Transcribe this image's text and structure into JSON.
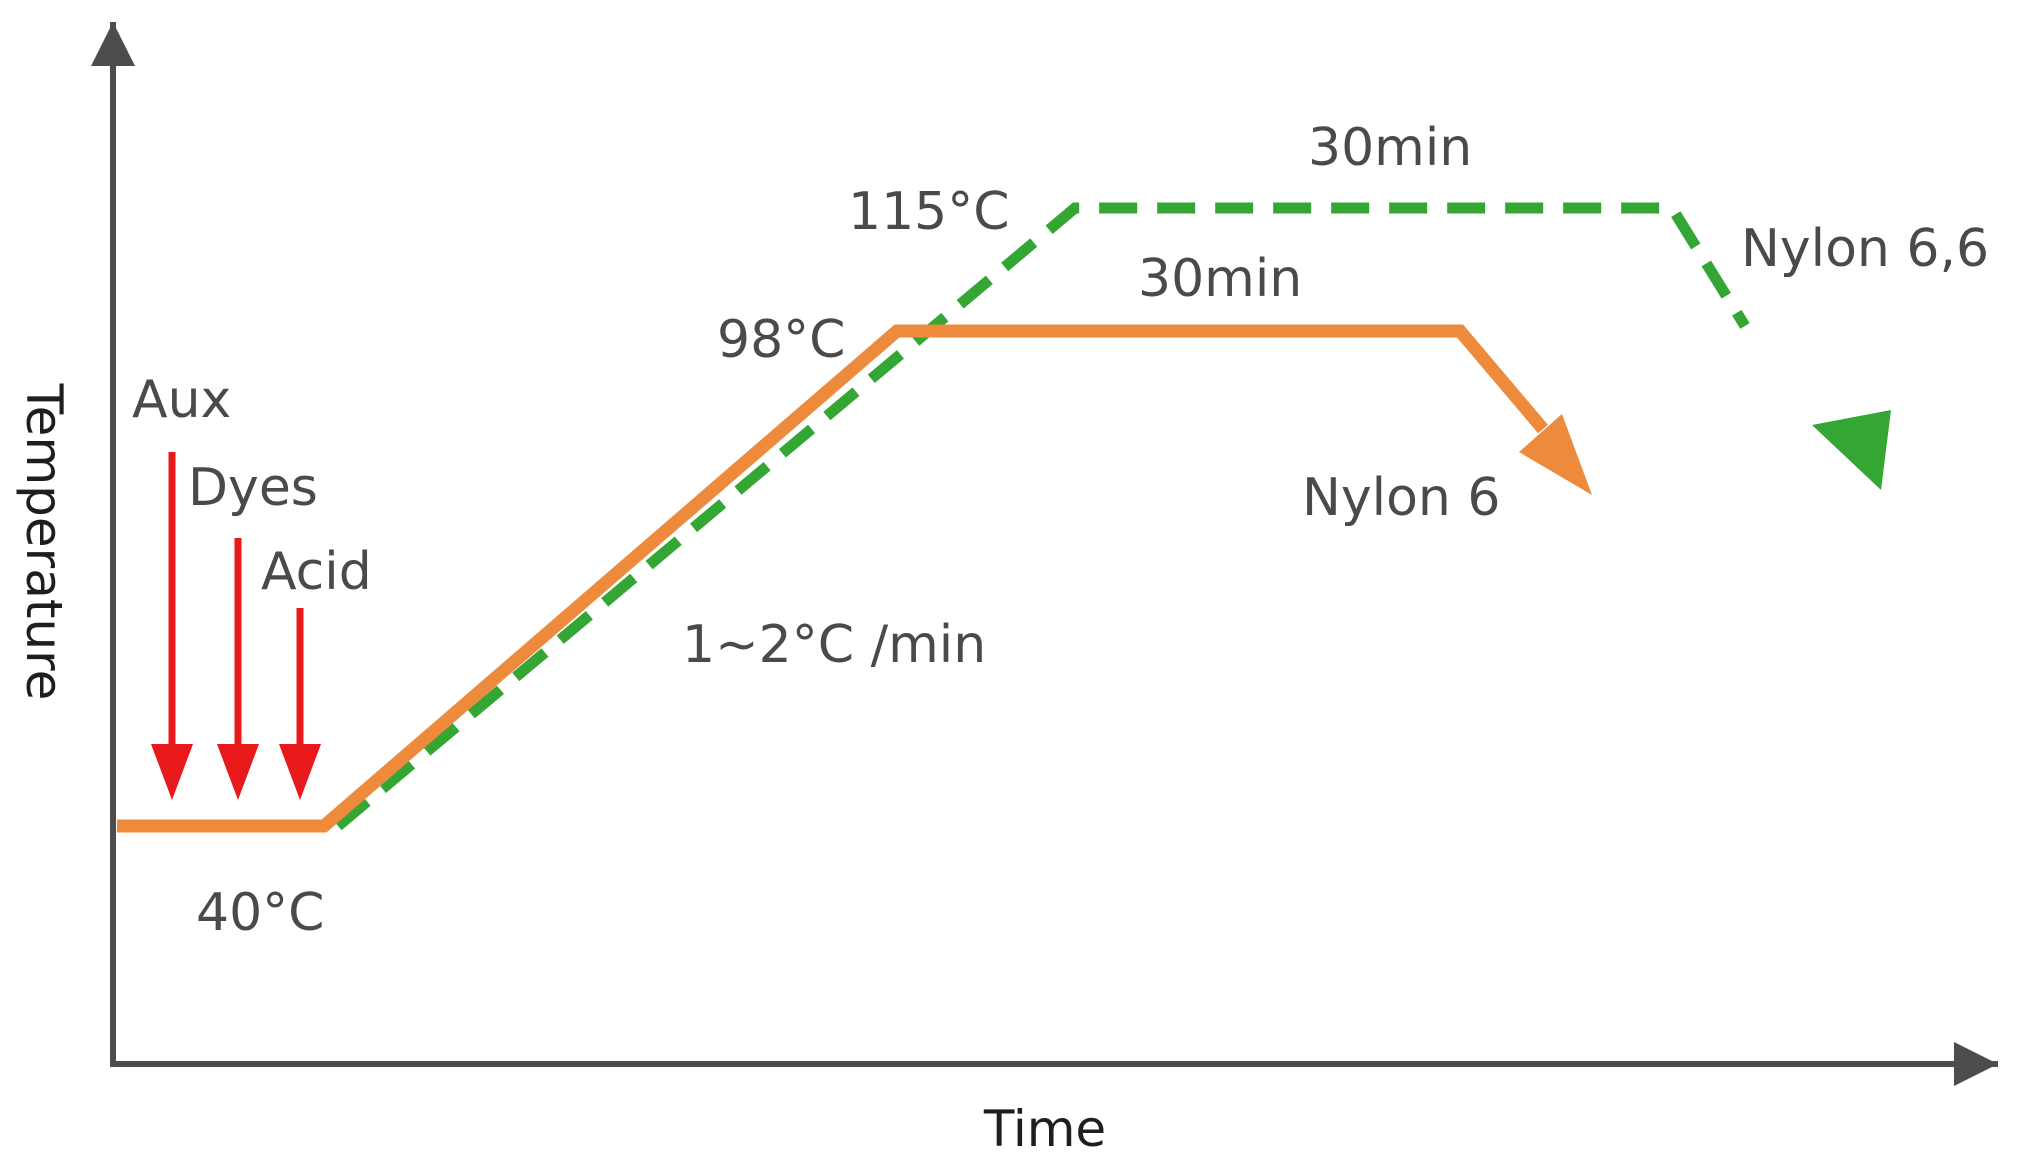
{
  "axes": {
    "x_label": "Time",
    "y_label": "Temperature",
    "color": "#4d4d4d"
  },
  "additions": {
    "color": "#e8191b",
    "items": [
      "Aux",
      "Dyes",
      "Acid"
    ]
  },
  "profiles": [
    {
      "name": "Nylon 6",
      "color": "#ee8a3c",
      "style": "solid",
      "hold_temp": "98°C",
      "hold_time": "30min"
    },
    {
      "name": "Nylon 6,6",
      "color": "#33a633",
      "style": "dashed",
      "hold_temp": "115°C",
      "hold_time": "30min"
    }
  ],
  "start_temp": "40°C",
  "heating_rate": "1~2°C /min"
}
